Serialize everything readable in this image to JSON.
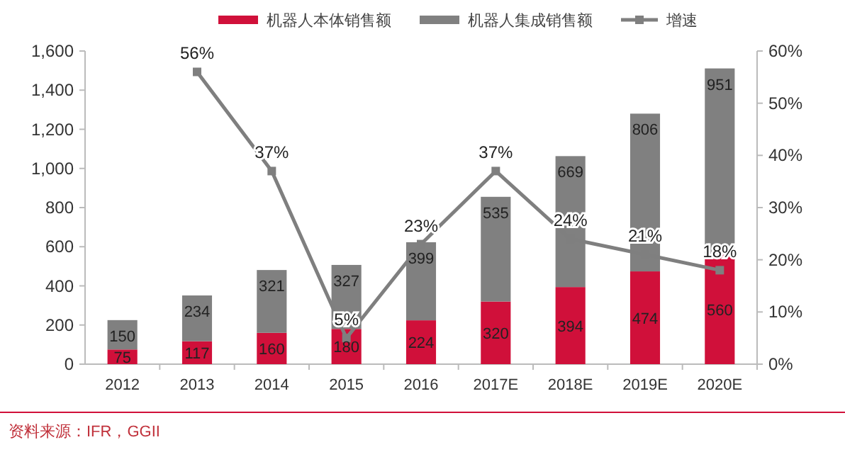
{
  "chart_data": {
    "type": "bar",
    "stacked": true,
    "categories": [
      "2012",
      "2013",
      "2014",
      "2015",
      "2016",
      "2017E",
      "2018E",
      "2019E",
      "2020E"
    ],
    "series": [
      {
        "name": "机器人本体销售额",
        "color": "#d0103a",
        "values": [
          75,
          117,
          160,
          180,
          224,
          320,
          394,
          474,
          560
        ],
        "value_labels": [
          "75",
          "117",
          "160",
          "180",
          "224",
          "320",
          "394",
          "474",
          "560"
        ]
      },
      {
        "name": "机器人集成销售额",
        "color": "#808080",
        "values": [
          150,
          234,
          321,
          327,
          399,
          535,
          669,
          806,
          951
        ],
        "value_labels": [
          "150",
          "234",
          "321",
          "327",
          "399",
          "535",
          "669",
          "806",
          "951"
        ]
      },
      {
        "name": "增速",
        "type": "line",
        "axis": "y2",
        "color": "#7f7f7f",
        "marker": "square",
        "values": [
          null,
          56,
          37,
          5,
          23,
          37,
          24,
          21,
          18
        ],
        "value_labels": [
          null,
          "56%",
          "37%",
          "5%",
          "23%",
          "37%",
          "24%",
          "21%",
          "18%"
        ]
      }
    ],
    "ylim": [
      0,
      1600
    ],
    "yticks": [
      0,
      {
        "value": 200,
        "label": "200"
      },
      {
        "value": 400,
        "label": "400"
      },
      {
        "value": 600,
        "label": "600"
      },
      {
        "value": 800,
        "label": "800"
      },
      {
        "value": 1000,
        "label": "1,000"
      },
      {
        "value": 1200,
        "label": "1,200"
      },
      {
        "value": 1400,
        "label": "1,400"
      },
      {
        "value": 1600,
        "label": "1,600"
      }
    ],
    "y2lim": [
      0,
      60
    ],
    "y2ticks": [
      {
        "value": 0,
        "label": "0%"
      },
      {
        "value": 10,
        "label": "10%"
      },
      {
        "value": 20,
        "label": "20%"
      },
      {
        "value": 30,
        "label": "30%"
      },
      {
        "value": 40,
        "label": "40%"
      },
      {
        "value": 50,
        "label": "50%"
      },
      {
        "value": 60,
        "label": "60%"
      }
    ],
    "legend": "top",
    "grid": false,
    "annotations": [
      "资料来源：IFR，GGII"
    ]
  }
}
